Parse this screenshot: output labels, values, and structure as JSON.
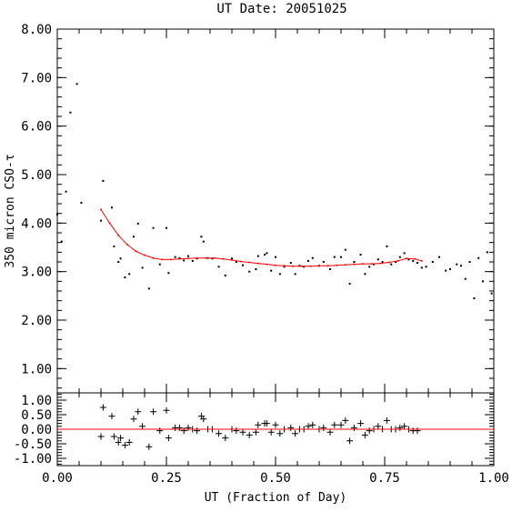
{
  "chart_data": [
    {
      "type": "scatter",
      "title": "UT Date: 20051025",
      "xlabel": "",
      "ylabel": "350 micron CSO-τ",
      "xlim": [
        0.0,
        1.0
      ],
      "ylim": [
        0.5,
        8.0
      ],
      "yticks": [
        "1.00",
        "2.00",
        "3.00",
        "4.00",
        "5.00",
        "6.00",
        "7.00",
        "8.00"
      ],
      "grid": false,
      "series": [
        {
          "marker": "dot",
          "color": "#000000",
          "x": [
            0.0,
            0.01,
            0.02,
            0.03,
            0.045,
            0.055,
            0.1,
            0.105,
            0.125,
            0.13,
            0.14,
            0.145,
            0.155,
            0.165,
            0.175,
            0.185,
            0.195,
            0.21,
            0.22,
            0.235,
            0.25,
            0.255,
            0.27,
            0.28,
            0.29,
            0.3,
            0.31,
            0.32,
            0.33,
            0.335,
            0.345,
            0.355,
            0.37,
            0.385,
            0.4,
            0.41,
            0.425,
            0.44,
            0.455,
            0.46,
            0.475,
            0.48,
            0.49,
            0.5,
            0.51,
            0.52,
            0.535,
            0.545,
            0.555,
            0.565,
            0.575,
            0.585,
            0.6,
            0.61,
            0.625,
            0.635,
            0.65,
            0.66,
            0.67,
            0.68,
            0.695,
            0.705,
            0.715,
            0.725,
            0.735,
            0.745,
            0.755,
            0.765,
            0.775,
            0.785,
            0.795,
            0.805,
            0.815,
            0.825,
            0.835,
            0.845,
            0.86,
            0.875,
            0.89,
            0.9,
            0.915,
            0.925,
            0.935,
            0.945,
            0.955,
            0.965,
            0.975,
            0.985,
            0.995
          ],
          "y": [
            4.18,
            3.62,
            4.65,
            6.28,
            6.87,
            4.42,
            4.05,
            4.87,
            4.32,
            3.52,
            3.2,
            3.27,
            2.88,
            2.95,
            3.72,
            3.99,
            3.08,
            2.65,
            3.9,
            3.15,
            3.9,
            2.97,
            3.3,
            3.28,
            3.23,
            3.32,
            3.22,
            3.27,
            3.72,
            3.62,
            3.28,
            3.27,
            3.1,
            2.92,
            3.27,
            3.2,
            3.13,
            3.0,
            3.05,
            3.32,
            3.35,
            3.38,
            3.02,
            3.3,
            2.95,
            3.1,
            3.18,
            2.95,
            3.12,
            3.1,
            3.22,
            3.28,
            3.12,
            3.2,
            3.05,
            3.3,
            3.3,
            3.45,
            2.75,
            3.2,
            3.35,
            2.95,
            3.1,
            3.15,
            3.25,
            3.2,
            3.52,
            3.15,
            3.2,
            3.3,
            3.38,
            3.25,
            3.22,
            3.18,
            3.08,
            3.1,
            3.2,
            3.3,
            3.02,
            3.05,
            3.15,
            3.12,
            2.85,
            3.2,
            2.45,
            3.28,
            2.8,
            3.4,
            2.55
          ]
        },
        {
          "marker": "line",
          "color": "#ff0000",
          "x": [
            0.1,
            0.12,
            0.14,
            0.16,
            0.18,
            0.2,
            0.22,
            0.24,
            0.26,
            0.28,
            0.3,
            0.32,
            0.34,
            0.36,
            0.38,
            0.4,
            0.42,
            0.44,
            0.46,
            0.48,
            0.5,
            0.52,
            0.54,
            0.56,
            0.58,
            0.6,
            0.62,
            0.64,
            0.66,
            0.68,
            0.7,
            0.72,
            0.74,
            0.76,
            0.78,
            0.8,
            0.82,
            0.835
          ],
          "y": [
            4.28,
            4.0,
            3.75,
            3.56,
            3.42,
            3.34,
            3.28,
            3.25,
            3.25,
            3.26,
            3.27,
            3.28,
            3.28,
            3.28,
            3.26,
            3.24,
            3.21,
            3.19,
            3.17,
            3.15,
            3.13,
            3.12,
            3.11,
            3.11,
            3.11,
            3.12,
            3.12,
            3.13,
            3.14,
            3.15,
            3.16,
            3.16,
            3.17,
            3.19,
            3.22,
            3.27,
            3.26,
            3.22
          ]
        }
      ]
    },
    {
      "type": "scatter",
      "title": "",
      "xlabel": "UT (Fraction of Day)",
      "ylabel": "",
      "xlim": [
        0.0,
        1.0
      ],
      "ylim": [
        -1.25,
        1.25
      ],
      "xticks": [
        "0.00",
        "0.25",
        "0.50",
        "0.75",
        "1.00"
      ],
      "yticks": [
        "1.00",
        "0.50",
        "0.00",
        "-0.50",
        "-1.00"
      ],
      "grid": false,
      "series": [
        {
          "marker": "plus",
          "color": "#000000",
          "x": [
            0.1,
            0.105,
            0.125,
            0.13,
            0.14,
            0.145,
            0.155,
            0.165,
            0.175,
            0.185,
            0.195,
            0.21,
            0.22,
            0.235,
            0.25,
            0.255,
            0.27,
            0.28,
            0.29,
            0.3,
            0.31,
            0.32,
            0.33,
            0.335,
            0.345,
            0.355,
            0.37,
            0.385,
            0.4,
            0.41,
            0.425,
            0.44,
            0.455,
            0.46,
            0.475,
            0.48,
            0.49,
            0.5,
            0.51,
            0.52,
            0.535,
            0.545,
            0.555,
            0.565,
            0.575,
            0.585,
            0.6,
            0.61,
            0.625,
            0.635,
            0.65,
            0.66,
            0.67,
            0.68,
            0.695,
            0.705,
            0.715,
            0.725,
            0.735,
            0.745,
            0.755,
            0.765,
            0.775,
            0.785,
            0.795,
            0.805,
            0.815,
            0.825
          ],
          "y": [
            -0.25,
            0.75,
            0.45,
            -0.25,
            -0.45,
            -0.3,
            -0.55,
            -0.45,
            0.35,
            0.6,
            0.1,
            -0.6,
            0.6,
            -0.05,
            0.65,
            -0.3,
            0.05,
            0.05,
            -0.05,
            0.05,
            0.0,
            -0.05,
            0.45,
            0.35,
            0.0,
            0.0,
            -0.15,
            -0.3,
            0.0,
            -0.05,
            -0.1,
            -0.2,
            -0.1,
            0.15,
            0.2,
            0.2,
            -0.1,
            0.15,
            -0.15,
            0.0,
            0.05,
            -0.15,
            0.0,
            0.0,
            0.1,
            0.15,
            0.0,
            0.05,
            -0.1,
            0.15,
            0.15,
            0.3,
            -0.4,
            0.05,
            0.2,
            -0.2,
            -0.05,
            0.0,
            0.1,
            0.0,
            0.3,
            0.0,
            0.0,
            0.05,
            0.1,
            0.0,
            -0.05,
            -0.05
          ]
        },
        {
          "marker": "line",
          "color": "#ff0000",
          "x": [
            0.0,
            1.0
          ],
          "y": [
            0.0,
            0.0
          ]
        }
      ]
    }
  ]
}
